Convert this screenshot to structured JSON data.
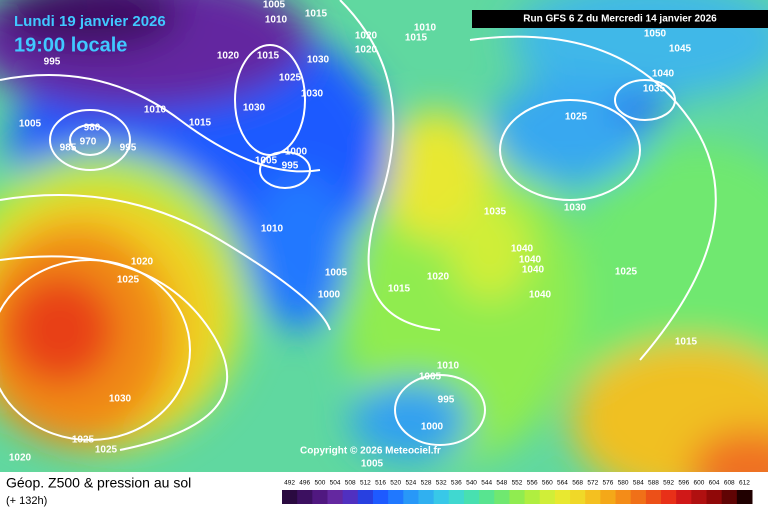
{
  "header": {
    "date": "Lundi 19 janvier 2026",
    "time": "19:00 locale",
    "run": "Run GFS 6 Z du Mercredi 14 janvier 2026"
  },
  "map": {
    "copyright": "Copyright © 2026 Meteociel.fr",
    "isobar_labels": [
      "995",
      "1005",
      "980",
      "970",
      "985",
      "995",
      "1010",
      "1015",
      "1020",
      "1015",
      "1025",
      "1030",
      "1030",
      "1030",
      "1005",
      "995",
      "1000",
      "1010",
      "1020",
      "1020",
      "1015",
      "1010",
      "1005",
      "1010",
      "1015",
      "1050",
      "1045",
      "1040",
      "1035",
      "1025",
      "1030",
      "1035",
      "1040",
      "1040",
      "1040",
      "1040",
      "1025",
      "1020",
      "1015",
      "1005",
      "1000",
      "1020",
      "1025",
      "1030",
      "1025",
      "1025",
      "1020",
      "1010",
      "1005",
      "995",
      "1000",
      "1005",
      "1015"
    ]
  },
  "footer": {
    "title": "Géop. Z500 & pression au sol",
    "lead": "(+ 132h)"
  },
  "colorbar": {
    "ticks": [
      492,
      496,
      500,
      504,
      508,
      512,
      516,
      520,
      524,
      528,
      532,
      536,
      540,
      544,
      548,
      552,
      556,
      560,
      564,
      568,
      572,
      576,
      580,
      584,
      588,
      592,
      596,
      600,
      604,
      608,
      612
    ],
    "colors": [
      "#2a0a40",
      "#3c1060",
      "#501880",
      "#6428a0",
      "#5030c0",
      "#2840e0",
      "#1e5aff",
      "#2078ff",
      "#2898f8",
      "#30b0f0",
      "#38c8e8",
      "#40d8d0",
      "#48e0b0",
      "#58e490",
      "#70e870",
      "#90ec50",
      "#b0ee40",
      "#d0ee38",
      "#e8e830",
      "#f0d828",
      "#f4c020",
      "#f4a818",
      "#f48c18",
      "#f07018",
      "#ec5018",
      "#e83018",
      "#d01818",
      "#b01010",
      "#900808",
      "#600404",
      "#200000"
    ]
  }
}
